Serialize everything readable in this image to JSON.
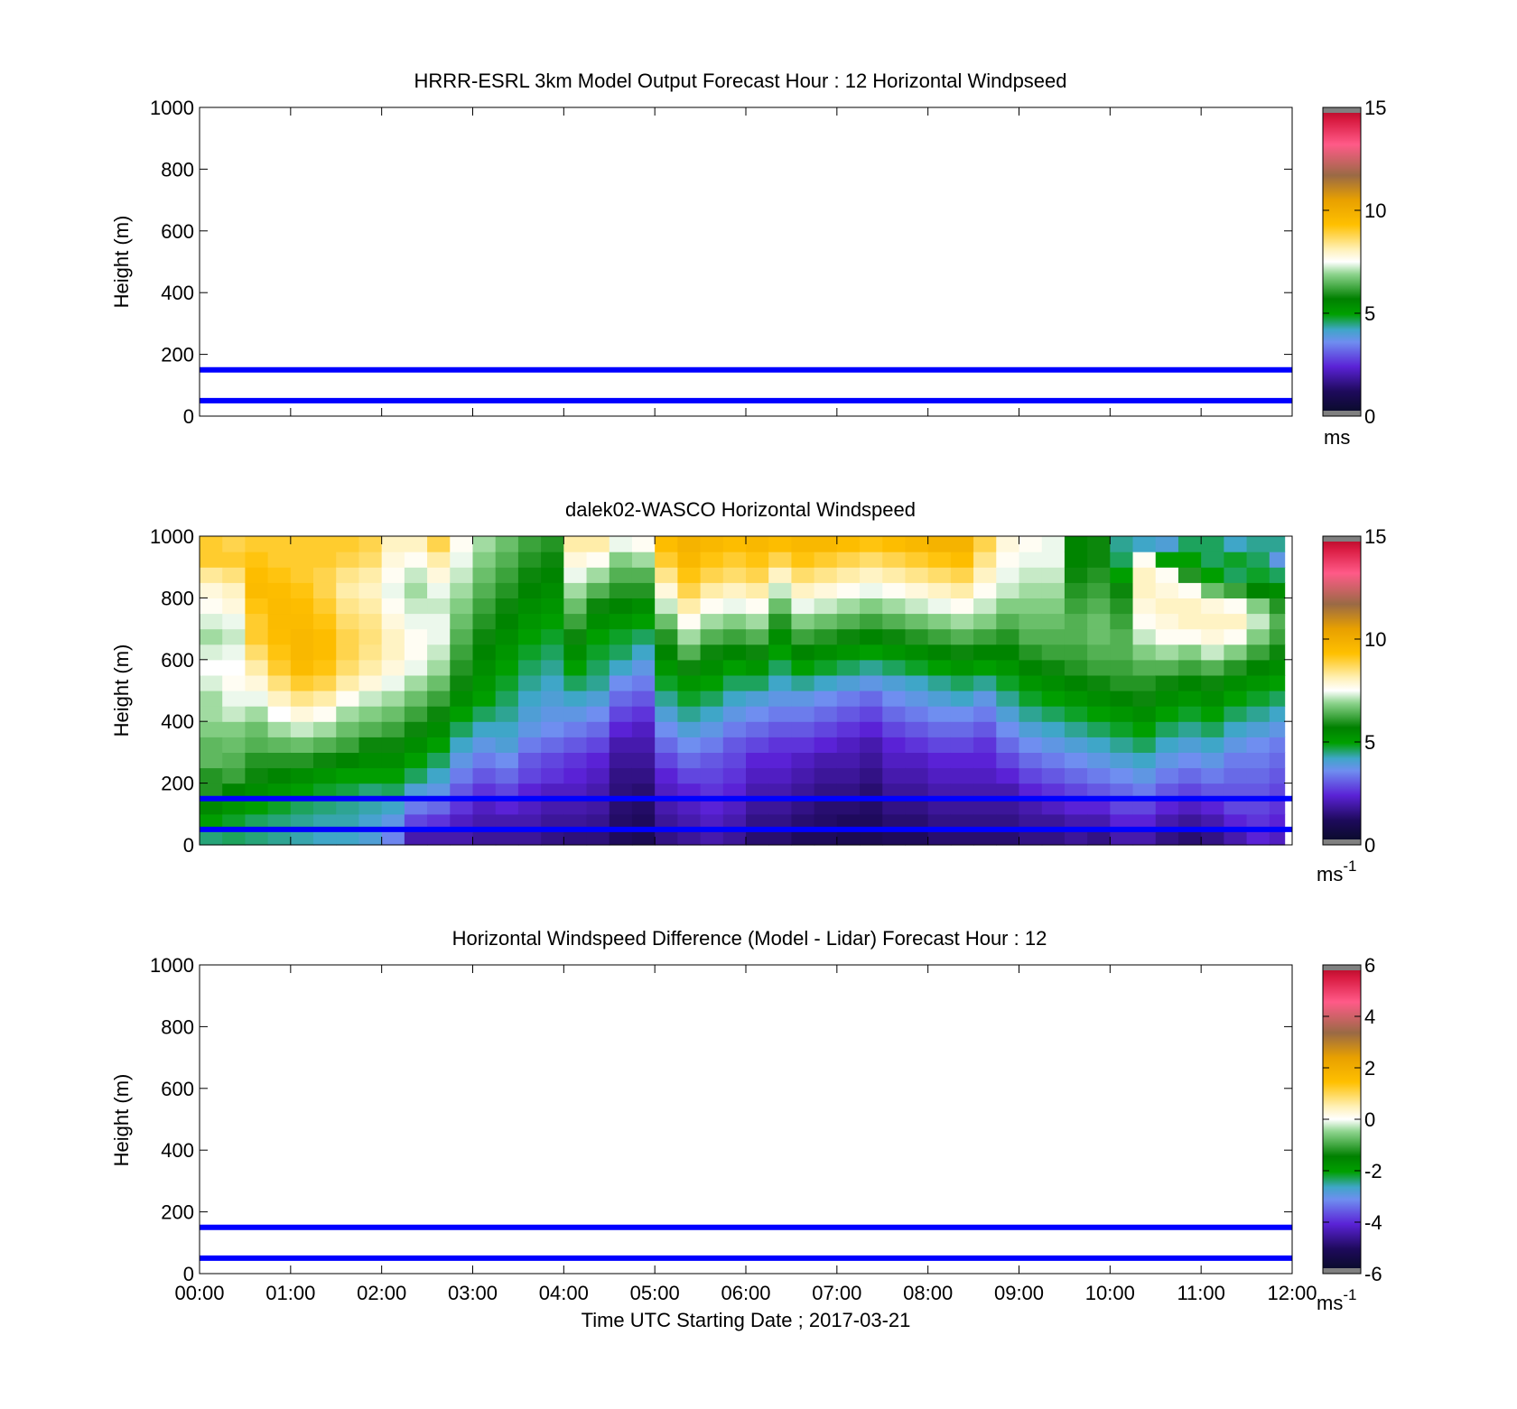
{
  "figure": {
    "xlabel": "Time UTC  Starting Date ; 2017-03-21",
    "x_tick_labels": [
      "00:00",
      "01:00",
      "02:00",
      "03:00",
      "04:00",
      "05:00",
      "06:00",
      "07:00",
      "08:00",
      "09:00",
      "10:00",
      "11:00",
      "12:00"
    ]
  },
  "chart_data": [
    {
      "id": "model",
      "type": "heatmap",
      "title": "HRRR-ESRL 3km Model Output   Forecast Hour : 12 Horizontal Windpseed",
      "ylabel": "Height (m)",
      "xlim": [
        "00:00",
        "12:00"
      ],
      "ylim": [
        0,
        1000
      ],
      "y_ticks": [
        0,
        200,
        400,
        600,
        800,
        1000
      ],
      "grid": false,
      "reference_lines_m": [
        50,
        150
      ],
      "reference_line_color": "#0000ff",
      "colorbar": {
        "ticks": [
          0,
          5,
          10,
          15
        ],
        "range": [
          0,
          15
        ],
        "unit": "ms",
        "unit_sup": ""
      },
      "cells": []
    },
    {
      "id": "lidar",
      "type": "heatmap",
      "title": "dalek02-WASCO  Horizontal Windspeed",
      "ylabel": "Height (m)",
      "xlim": [
        "00:00",
        "12:00"
      ],
      "ylim": [
        0,
        1000
      ],
      "y_ticks": [
        0,
        200,
        400,
        600,
        800,
        1000
      ],
      "grid": false,
      "reference_lines_m": [
        50,
        150
      ],
      "reference_line_color": "#0000ff",
      "colorbar": {
        "ticks": [
          0,
          5,
          10,
          15
        ],
        "range": [
          0,
          15
        ],
        "unit": "ms",
        "unit_sup": "-1"
      },
      "time_columns": [
        "00:00",
        "00:15",
        "00:30",
        "00:45",
        "01:00",
        "01:15",
        "01:30",
        "01:45",
        "02:00",
        "02:15",
        "02:30",
        "02:45",
        "03:00",
        "03:15",
        "03:30",
        "03:45",
        "04:00",
        "04:15",
        "04:30",
        "04:45",
        "05:00",
        "05:15",
        "05:30",
        "05:45",
        "06:00",
        "06:15",
        "06:30",
        "06:45",
        "07:00",
        "07:15",
        "07:30",
        "07:45",
        "08:00",
        "08:15",
        "08:30",
        "08:45",
        "09:00",
        "09:15",
        "09:30",
        "09:45",
        "10:00",
        "10:15",
        "10:30",
        "10:45",
        "11:00",
        "11:15",
        "11:30",
        "11:45"
      ],
      "data_end_time": "11:55",
      "height_levels_m": [
        25,
        75,
        125,
        175,
        225,
        275,
        325,
        375,
        425,
        475,
        525,
        575,
        625,
        675,
        725,
        775,
        825,
        875,
        925,
        975
      ],
      "windspeed_profiles_ms": [
        [
          4.5,
          5.0,
          5.5,
          6.0,
          6.0,
          6.5,
          6.5,
          6.8,
          7.0,
          7.0,
          7.3,
          7.5,
          7.3,
          7.0,
          7.3,
          7.6,
          7.8,
          8.3,
          9.0,
          9.0
        ],
        [
          4.6,
          4.8,
          5.2,
          5.6,
          6.2,
          6.4,
          6.6,
          6.8,
          7.2,
          7.4,
          7.6,
          7.5,
          7.4,
          7.2,
          7.4,
          7.8,
          8.0,
          8.5,
          9.0,
          8.8
        ],
        [
          4.5,
          4.6,
          5.0,
          5.4,
          5.8,
          6.0,
          6.4,
          6.6,
          7.0,
          7.4,
          7.8,
          8.2,
          8.6,
          9.0,
          9.0,
          9.2,
          9.5,
          9.4,
          9.2,
          9.0
        ],
        [
          4.4,
          4.5,
          4.8,
          5.2,
          5.6,
          6.0,
          6.5,
          7.0,
          7.5,
          8.0,
          8.5,
          9.0,
          9.2,
          9.4,
          9.5,
          9.5,
          9.4,
          9.2,
          9.0,
          9.0
        ],
        [
          4.3,
          4.4,
          4.6,
          5.0,
          5.4,
          6.0,
          6.6,
          7.2,
          7.8,
          8.4,
          9.0,
          9.5,
          9.6,
          9.6,
          9.5,
          9.4,
          9.2,
          9.0,
          9.0,
          9.0
        ],
        [
          4.2,
          4.3,
          4.5,
          4.8,
          5.2,
          5.8,
          6.4,
          7.0,
          7.6,
          8.2,
          8.8,
          9.2,
          9.4,
          9.4,
          9.2,
          9.0,
          8.8,
          8.8,
          9.0,
          9.0
        ],
        [
          4.2,
          4.3,
          4.4,
          4.7,
          5.0,
          5.6,
          6.2,
          6.6,
          7.0,
          7.6,
          8.2,
          8.6,
          8.8,
          8.8,
          8.6,
          8.4,
          8.2,
          8.4,
          8.8,
          9.0
        ],
        [
          4.0,
          4.1,
          4.3,
          4.5,
          5.0,
          5.4,
          5.8,
          6.4,
          6.8,
          7.2,
          7.8,
          8.2,
          8.4,
          8.5,
          8.4,
          8.2,
          8.0,
          8.2,
          8.6,
          8.8
        ],
        [
          3.5,
          3.8,
          4.2,
          4.6,
          5.0,
          5.4,
          5.8,
          6.2,
          6.6,
          7.0,
          7.4,
          7.8,
          8.0,
          8.0,
          7.8,
          7.6,
          7.4,
          7.6,
          7.8,
          8.0
        ],
        [
          2.0,
          2.8,
          3.4,
          4.0,
          4.6,
          5.0,
          5.4,
          5.8,
          6.2,
          6.6,
          7.0,
          7.4,
          7.6,
          7.6,
          7.4,
          7.2,
          7.0,
          7.2,
          7.6,
          8.0
        ],
        [
          2.0,
          2.6,
          3.2,
          3.8,
          4.2,
          4.6,
          5.0,
          5.4,
          5.8,
          6.2,
          6.6,
          7.0,
          7.2,
          7.4,
          7.4,
          7.2,
          7.4,
          7.8,
          8.2,
          8.8
        ],
        [
          2.0,
          2.2,
          2.6,
          3.0,
          3.4,
          3.8,
          4.2,
          4.6,
          5.0,
          5.4,
          5.8,
          6.0,
          6.2,
          6.4,
          6.6,
          6.8,
          7.0,
          7.2,
          7.4,
          7.6
        ],
        [
          1.8,
          2.0,
          2.2,
          2.6,
          3.0,
          3.4,
          3.8,
          4.2,
          4.6,
          5.0,
          5.2,
          5.4,
          5.6,
          5.8,
          6.0,
          6.2,
          6.4,
          6.6,
          6.8,
          7.0
        ],
        [
          1.8,
          2.0,
          2.4,
          2.8,
          3.2,
          3.6,
          4.0,
          4.2,
          4.4,
          4.6,
          4.8,
          5.0,
          5.2,
          5.4,
          5.6,
          5.8,
          6.0,
          6.2,
          6.4,
          6.6
        ],
        [
          1.8,
          2.0,
          2.2,
          2.4,
          2.8,
          3.0,
          3.4,
          3.8,
          4.0,
          4.2,
          4.4,
          4.6,
          4.8,
          5.0,
          5.2,
          5.4,
          5.6,
          5.8,
          6.0,
          6.2
        ],
        [
          1.6,
          1.8,
          2.0,
          2.2,
          2.6,
          2.8,
          3.2,
          3.6,
          3.8,
          4.0,
          4.2,
          4.4,
          4.6,
          4.8,
          5.0,
          5.2,
          5.4,
          5.6,
          5.8,
          6.0
        ],
        [
          1.5,
          1.8,
          2.0,
          2.2,
          2.4,
          2.6,
          3.0,
          3.4,
          3.8,
          4.2,
          4.6,
          5.0,
          5.4,
          5.8,
          6.2,
          6.6,
          7.0,
          7.4,
          7.8,
          8.2
        ],
        [
          1.5,
          1.7,
          1.9,
          2.0,
          2.2,
          2.4,
          2.8,
          3.2,
          3.6,
          4.0,
          4.4,
          4.6,
          4.8,
          5.0,
          5.4,
          5.8,
          6.4,
          7.0,
          7.6,
          8.2
        ],
        [
          1.2,
          1.3,
          1.4,
          1.5,
          1.6,
          1.8,
          2.0,
          2.4,
          2.8,
          3.2,
          3.6,
          4.2,
          4.6,
          4.8,
          5.2,
          5.6,
          6.0,
          6.4,
          6.8,
          7.4
        ],
        [
          1.0,
          1.2,
          1.3,
          1.4,
          1.6,
          1.8,
          2.0,
          2.2,
          2.6,
          3.0,
          3.4,
          3.8,
          4.2,
          4.6,
          5.0,
          5.4,
          6.0,
          6.4,
          7.0,
          7.6
        ],
        [
          1.6,
          1.8,
          2.0,
          2.2,
          2.4,
          2.8,
          3.2,
          3.6,
          4.0,
          4.4,
          4.8,
          5.2,
          5.6,
          6.0,
          6.6,
          7.2,
          7.8,
          8.4,
          9.0,
          9.4
        ],
        [
          1.8,
          2.0,
          2.2,
          2.4,
          2.8,
          3.2,
          3.6,
          4.0,
          4.4,
          4.8,
          5.2,
          5.8,
          6.4,
          7.0,
          7.6,
          8.2,
          8.8,
          9.2,
          9.6,
          9.8
        ],
        [
          2.0,
          2.2,
          2.4,
          2.6,
          2.8,
          3.0,
          3.4,
          3.8,
          4.2,
          4.6,
          5.0,
          5.4,
          5.8,
          6.4,
          7.0,
          7.6,
          8.2,
          8.8,
          9.2,
          9.6
        ],
        [
          1.8,
          2.0,
          2.2,
          2.4,
          2.6,
          2.8,
          3.0,
          3.4,
          3.8,
          4.2,
          4.6,
          5.0,
          5.6,
          6.2,
          6.8,
          7.4,
          8.0,
          8.6,
          9.0,
          9.4
        ],
        [
          1.4,
          1.6,
          1.8,
          2.0,
          2.2,
          2.4,
          2.8,
          3.2,
          3.6,
          4.0,
          4.6,
          5.2,
          5.8,
          6.4,
          7.0,
          7.6,
          8.2,
          8.8,
          9.2,
          9.6
        ],
        [
          1.4,
          1.6,
          1.8,
          2.0,
          2.2,
          2.4,
          2.6,
          3.0,
          3.4,
          3.8,
          4.2,
          4.6,
          5.0,
          5.4,
          6.0,
          6.6,
          7.2,
          8.0,
          8.8,
          9.4
        ],
        [
          1.2,
          1.4,
          1.6,
          1.8,
          2.0,
          2.2,
          2.6,
          3.0,
          3.4,
          3.8,
          4.4,
          5.0,
          5.6,
          6.2,
          6.8,
          7.4,
          8.0,
          8.6,
          9.2,
          9.6
        ],
        [
          1.2,
          1.3,
          1.4,
          1.6,
          1.8,
          2.0,
          2.4,
          2.8,
          3.2,
          3.6,
          4.2,
          4.8,
          5.4,
          6.0,
          6.6,
          7.2,
          7.8,
          8.4,
          9.0,
          9.6
        ],
        [
          1.0,
          1.2,
          1.4,
          1.6,
          1.8,
          2.0,
          2.2,
          2.6,
          3.0,
          3.4,
          4.0,
          4.6,
          5.2,
          5.8,
          6.4,
          7.0,
          7.6,
          8.2,
          8.8,
          9.4
        ],
        [
          1.0,
          1.2,
          1.3,
          1.4,
          1.6,
          1.8,
          2.0,
          2.4,
          2.8,
          3.2,
          3.8,
          4.4,
          5.0,
          5.6,
          6.2,
          6.8,
          7.4,
          8.0,
          8.6,
          9.2
        ],
        [
          1.2,
          1.4,
          1.6,
          1.8,
          2.0,
          2.2,
          2.4,
          2.8,
          3.2,
          3.6,
          4.0,
          4.6,
          5.2,
          5.8,
          6.4,
          7.0,
          7.6,
          8.2,
          8.8,
          9.4
        ],
        [
          1.2,
          1.4,
          1.6,
          1.8,
          2.0,
          2.2,
          2.6,
          3.0,
          3.4,
          3.8,
          4.2,
          4.8,
          5.4,
          6.0,
          6.6,
          7.2,
          7.8,
          8.4,
          9.0,
          9.6
        ],
        [
          1.4,
          1.6,
          1.8,
          2.0,
          2.2,
          2.4,
          2.8,
          3.2,
          3.6,
          4.0,
          4.4,
          5.0,
          5.6,
          6.2,
          6.8,
          7.4,
          8.0,
          8.6,
          9.2,
          9.8
        ],
        [
          1.4,
          1.6,
          1.8,
          2.0,
          2.2,
          2.4,
          2.8,
          3.2,
          3.6,
          4.2,
          4.6,
          5.2,
          5.8,
          6.4,
          7.0,
          7.6,
          8.2,
          8.8,
          9.4,
          9.8
        ],
        [
          1.4,
          1.6,
          1.8,
          2.0,
          2.2,
          2.4,
          2.6,
          3.0,
          3.4,
          3.8,
          4.4,
          5.0,
          5.6,
          6.2,
          6.8,
          7.2,
          7.6,
          8.0,
          8.4,
          8.8
        ],
        [
          1.4,
          1.6,
          1.8,
          2.0,
          2.4,
          2.8,
          3.2,
          3.6,
          4.0,
          4.4,
          4.8,
          5.2,
          5.6,
          6.0,
          6.4,
          6.8,
          7.2,
          7.4,
          7.6,
          7.8
        ],
        [
          1.6,
          1.8,
          2.0,
          2.4,
          2.8,
          3.2,
          3.6,
          4.0,
          4.4,
          4.8,
          5.2,
          5.6,
          6.0,
          6.4,
          6.6,
          6.8,
          7.0,
          7.2,
          7.4,
          7.6
        ],
        [
          1.6,
          1.8,
          2.2,
          2.6,
          3.0,
          3.4,
          3.8,
          4.2,
          4.6,
          5.0,
          5.4,
          5.8,
          6.2,
          6.4,
          6.6,
          6.8,
          7.0,
          7.2,
          7.4,
          7.4
        ],
        [
          1.8,
          2.0,
          2.4,
          2.8,
          3.2,
          3.6,
          4.0,
          4.4,
          4.8,
          5.2,
          5.6,
          6.0,
          6.2,
          6.4,
          6.4,
          6.2,
          6.0,
          5.8,
          5.6,
          5.6
        ],
        [
          1.6,
          2.0,
          2.4,
          3.0,
          3.4,
          3.8,
          4.2,
          4.6,
          5.0,
          5.4,
          5.8,
          6.2,
          6.4,
          6.6,
          6.6,
          6.4,
          6.2,
          6.0,
          5.8,
          5.8
        ],
        [
          2.0,
          2.4,
          2.8,
          3.2,
          3.6,
          4.0,
          4.4,
          4.8,
          5.2,
          5.6,
          6.0,
          6.2,
          6.4,
          6.4,
          6.2,
          6.0,
          5.8,
          5.0,
          4.6,
          4.4
        ],
        [
          2.0,
          2.4,
          2.8,
          3.4,
          3.8,
          4.2,
          4.6,
          5.0,
          5.4,
          5.8,
          6.0,
          6.4,
          6.8,
          7.2,
          7.6,
          7.8,
          8.0,
          8.0,
          7.6,
          4.2
        ],
        [
          1.6,
          2.0,
          2.4,
          3.0,
          3.4,
          3.8,
          4.2,
          4.6,
          5.0,
          5.4,
          5.8,
          6.4,
          7.0,
          7.6,
          7.8,
          8.0,
          7.8,
          7.6,
          5.0,
          4.0
        ],
        [
          1.4,
          1.8,
          2.2,
          2.8,
          3.2,
          3.6,
          4.0,
          4.4,
          4.8,
          5.2,
          5.6,
          6.2,
          6.8,
          7.6,
          8.0,
          8.0,
          7.6,
          6.0,
          5.0,
          4.6
        ],
        [
          1.6,
          2.0,
          2.4,
          3.0,
          3.4,
          3.8,
          4.2,
          4.6,
          5.0,
          5.4,
          5.8,
          6.4,
          7.2,
          7.8,
          8.0,
          7.8,
          6.6,
          5.0,
          4.6,
          4.6
        ],
        [
          2.0,
          2.4,
          2.8,
          3.0,
          3.2,
          3.4,
          3.8,
          4.2,
          4.6,
          5.0,
          5.4,
          6.0,
          6.8,
          7.6,
          8.0,
          7.6,
          6.2,
          4.6,
          4.8,
          4.2
        ],
        [
          2.4,
          2.6,
          2.8,
          3.0,
          3.2,
          3.4,
          3.6,
          4.0,
          4.4,
          4.8,
          5.2,
          5.6,
          6.2,
          6.8,
          7.2,
          6.8,
          5.6,
          4.8,
          4.6,
          4.4
        ],
        [
          2.2,
          2.4,
          2.6,
          2.8,
          3.0,
          3.2,
          3.4,
          3.8,
          4.2,
          4.6,
          5.0,
          5.4,
          5.8,
          6.2,
          6.4,
          6.0,
          5.4,
          4.6,
          3.8,
          4.4
        ]
      ]
    },
    {
      "id": "difference",
      "type": "heatmap",
      "title": "Horizontal Windspeed Difference (Model - Lidar) Forecast Hour : 12",
      "ylabel": "Height (m)",
      "xlim": [
        "00:00",
        "12:00"
      ],
      "ylim": [
        0,
        1000
      ],
      "y_ticks": [
        0,
        200,
        400,
        600,
        800,
        1000
      ],
      "grid": false,
      "reference_lines_m": [
        50,
        150
      ],
      "reference_line_color": "#0000ff",
      "colorbar": {
        "ticks": [
          -6,
          -4,
          -2,
          0,
          2,
          4,
          6
        ],
        "range": [
          -6,
          6
        ],
        "unit": "ms",
        "unit_sup": "-1"
      },
      "cells": []
    }
  ]
}
